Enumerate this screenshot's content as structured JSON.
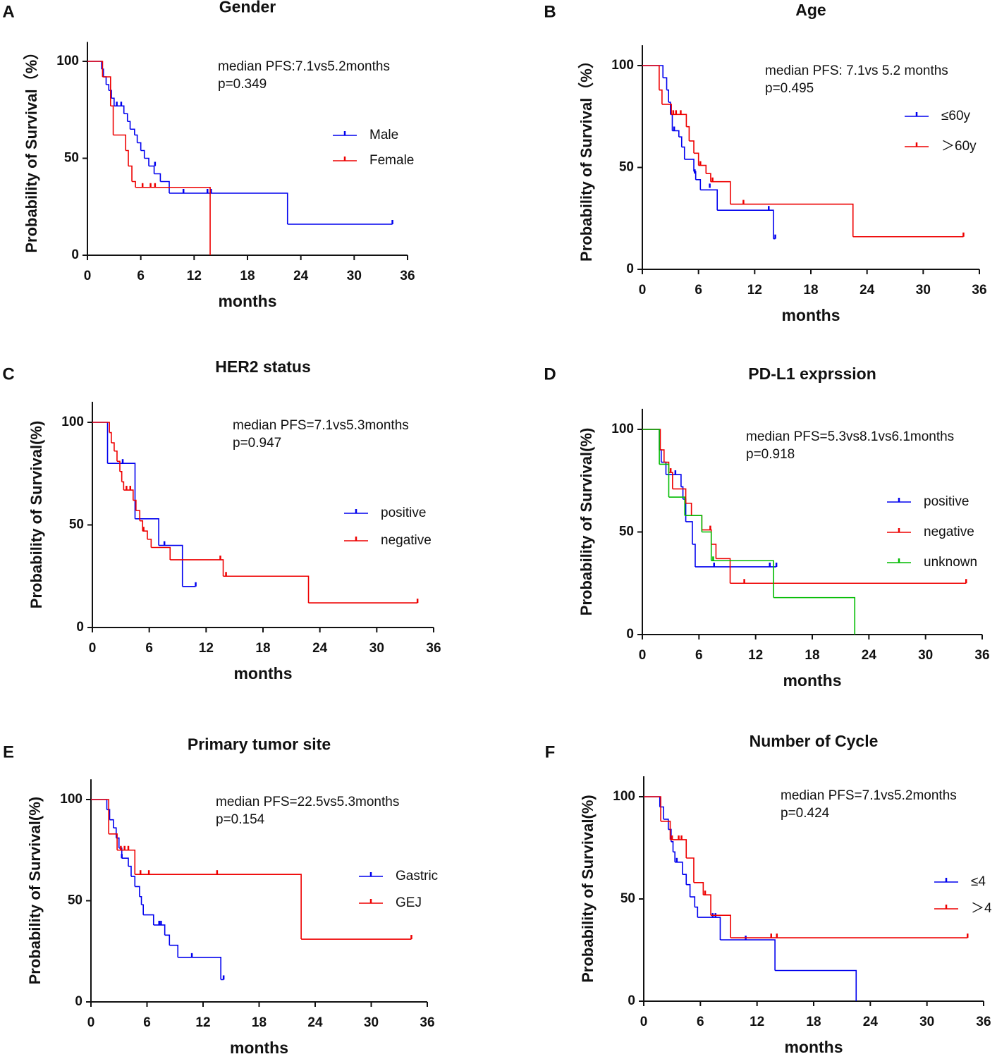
{
  "chart_data": [
    {
      "type": "step",
      "panel": "A",
      "title": "Gender",
      "annotations": [
        "median PFS:7.1vs5.2months",
        "p=0.349"
      ],
      "x_label": "months",
      "y_label": "Probability of Survival（%）",
      "xlim": [
        0,
        36
      ],
      "ylim": [
        0,
        110
      ],
      "xticks": [
        0,
        6,
        12,
        18,
        24,
        30,
        36
      ],
      "yticks": [
        0,
        50,
        100
      ],
      "series": [
        {
          "name": "Male",
          "color": "#0000ee",
          "x": [
            0,
            1.6,
            1.8,
            2.1,
            2.4,
            2.7,
            3.0,
            4.1,
            4.5,
            4.8,
            5.3,
            5.6,
            6.0,
            6.4,
            6.9,
            7.5,
            8.2,
            9.2,
            22.5,
            34.3
          ],
          "values": [
            100,
            96,
            92,
            88,
            85,
            81,
            77,
            73,
            69,
            65,
            62,
            58,
            54,
            50,
            46,
            42,
            38,
            32,
            16,
            16
          ],
          "censor_x": [
            3.3,
            3.8,
            7.6,
            10.8,
            13.5,
            13.9,
            34.3
          ],
          "censor_values": [
            77,
            77,
            46,
            32,
            32,
            32,
            16
          ]
        },
        {
          "name": "Female",
          "color": "#ee0000",
          "x": [
            0,
            1.7,
            2.6,
            2.9,
            4.3,
            4.6,
            5.0,
            5.4,
            13.8
          ],
          "values": [
            100,
            92,
            77,
            62,
            54,
            46,
            38,
            35,
            0
          ],
          "censor_x": [
            6.2,
            7.1,
            7.6
          ],
          "censor_values": [
            35,
            35,
            35
          ]
        }
      ]
    },
    {
      "type": "step",
      "panel": "B",
      "title": "Age",
      "annotations": [
        "median PFS: 7.1vs 5.2 months",
        "p=0.495"
      ],
      "x_label": "months",
      "y_label": "Probability of Survival（%）",
      "xlim": [
        0,
        36
      ],
      "ylim": [
        0,
        110
      ],
      "xticks": [
        0,
        6,
        12,
        18,
        24,
        30,
        36
      ],
      "yticks": [
        0,
        50,
        100
      ],
      "series": [
        {
          "name": "≤60y",
          "color": "#0000ee",
          "x": [
            0,
            2.2,
            2.6,
            2.8,
            3.0,
            3.2,
            3.9,
            4.2,
            4.5,
            5.5,
            5.7,
            6.2,
            8.0,
            14.0,
            14.2
          ],
          "values": [
            100,
            94,
            88,
            82,
            76,
            68,
            65,
            60,
            54,
            48,
            44,
            39,
            29,
            15,
            15
          ],
          "censor_x": [
            3.4,
            5.6,
            7.2,
            13.5,
            14.2
          ],
          "censor_values": [
            68,
            47,
            40,
            29,
            15
          ]
        },
        {
          "name": "＞60y",
          "color": "#ee0000",
          "x": [
            0,
            1.8,
            2.1,
            3.1,
            4.7,
            5.0,
            5.5,
            6.0,
            6.8,
            7.3,
            9.4,
            22.5,
            34.3
          ],
          "values": [
            100,
            88,
            81,
            76,
            70,
            63,
            57,
            51,
            47,
            43,
            32,
            16,
            16
          ],
          "censor_x": [
            3.3,
            3.6,
            4.1,
            6.2,
            7.5,
            10.8,
            34.3
          ],
          "censor_values": [
            76,
            76,
            76,
            51,
            43,
            32,
            16
          ]
        }
      ]
    },
    {
      "type": "step",
      "panel": "C",
      "title": "HER2 status",
      "annotations": [
        "median PFS=7.1vs5.3months",
        "p=0.947"
      ],
      "x_label": "months",
      "y_label": "Probability of Survival(%)",
      "xlim": [
        0,
        36
      ],
      "ylim": [
        0,
        110
      ],
      "xticks": [
        0,
        6,
        12,
        18,
        24,
        30,
        36
      ],
      "yticks": [
        0,
        50,
        100
      ],
      "series": [
        {
          "name": "positive",
          "color": "#0000ee",
          "x": [
            0,
            1.6,
            4.5,
            7.0,
            9.5,
            10.9
          ],
          "values": [
            100,
            80,
            53,
            40,
            20,
            20
          ],
          "censor_x": [
            3.2,
            7.6,
            10.9
          ],
          "censor_values": [
            80,
            40,
            20
          ]
        },
        {
          "name": "negative",
          "color": "#ee0000",
          "x": [
            0,
            1.8,
            2.0,
            2.3,
            2.6,
            2.9,
            3.1,
            3.3,
            4.3,
            4.6,
            5.0,
            5.3,
            5.8,
            6.2,
            8.2,
            13.8,
            22.8,
            34.3
          ],
          "values": [
            100,
            95,
            90,
            86,
            81,
            76,
            71,
            67,
            62,
            57,
            52,
            47,
            43,
            39,
            33,
            25,
            12,
            12
          ],
          "censor_x": [
            3.6,
            4.0,
            5.4,
            13.5,
            14.1,
            34.3
          ],
          "censor_values": [
            67,
            67,
            47,
            33,
            25,
            12
          ]
        }
      ]
    },
    {
      "type": "step",
      "panel": "D",
      "title": "PD-L1 exprssion",
      "annotations": [
        "median PFS=5.3vs8.1vs6.1months",
        "p=0.918"
      ],
      "x_label": "months",
      "y_label": "Probability of Survival(%)",
      "xlim": [
        0,
        36
      ],
      "ylim": [
        0,
        110
      ],
      "xticks": [
        0,
        6,
        12,
        18,
        24,
        30,
        36
      ],
      "yticks": [
        0,
        50,
        100
      ],
      "series": [
        {
          "name": "positive",
          "color": "#0000ee",
          "x": [
            0,
            1.8,
            2.0,
            2.5,
            4.1,
            4.3,
            4.6,
            5.3,
            5.6,
            14.2
          ],
          "values": [
            100,
            90,
            84,
            78,
            72,
            66,
            55,
            44,
            33,
            33
          ],
          "censor_x": [
            3.5,
            7.6,
            13.5,
            14.2
          ],
          "censor_values": [
            78,
            33,
            33,
            33
          ]
        },
        {
          "name": "negative",
          "color": "#ee0000",
          "x": [
            0,
            1.9,
            2.3,
            2.8,
            3.2,
            4.6,
            5.2,
            6.3,
            7.3,
            7.8,
            9.3,
            34.3
          ],
          "values": [
            100,
            90,
            84,
            79,
            71,
            64,
            58,
            51,
            44,
            37,
            25,
            25
          ],
          "censor_x": [
            3.0,
            7.2,
            10.8,
            34.3
          ],
          "censor_values": [
            79,
            51,
            25,
            25
          ]
        },
        {
          "name": "unknown",
          "color": "#00bb00",
          "x": [
            0,
            1.8,
            2.8,
            4.5,
            6.3,
            7.3,
            13.9,
            22.5
          ],
          "values": [
            100,
            83,
            67,
            58,
            50,
            36,
            18,
            0
          ],
          "censor_x": [
            7.5
          ],
          "censor_values": [
            36
          ]
        }
      ]
    },
    {
      "type": "step",
      "panel": "E",
      "title": "Primary tumor site",
      "annotations": [
        "median PFS=22.5vs5.3months",
        "p=0.154"
      ],
      "x_label": "months",
      "y_label": "Probability of Survival(%)",
      "xlim": [
        0,
        36
      ],
      "ylim": [
        0,
        110
      ],
      "xticks": [
        0,
        6,
        12,
        18,
        24,
        30,
        36
      ],
      "yticks": [
        0,
        50,
        100
      ],
      "series": [
        {
          "name": "Gastric",
          "color": "#0000ee",
          "x": [
            0,
            1.7,
            2.0,
            2.4,
            2.7,
            3.0,
            3.3,
            4.0,
            4.3,
            4.7,
            5.2,
            5.4,
            5.6,
            6.7,
            7.9,
            8.4,
            9.3,
            13.9,
            14.2
          ],
          "values": [
            100,
            95,
            90,
            86,
            81,
            76,
            71,
            67,
            62,
            57,
            52,
            48,
            43,
            38,
            33,
            28,
            22,
            11,
            11
          ],
          "censor_x": [
            3.3,
            7.3,
            7.5,
            10.8,
            14.2
          ],
          "censor_values": [
            71,
            38,
            38,
            22,
            11
          ]
        },
        {
          "name": "GEJ",
          "color": "#ee0000",
          "x": [
            0,
            1.9,
            2.8,
            4.7,
            22.5,
            34.3
          ],
          "values": [
            100,
            83,
            75,
            63,
            31,
            31
          ],
          "censor_x": [
            3.2,
            3.6,
            4.0,
            5.3,
            6.2,
            13.5,
            34.3
          ],
          "censor_values": [
            75,
            75,
            75,
            63,
            63,
            63,
            31
          ]
        }
      ]
    },
    {
      "type": "step",
      "panel": "F",
      "title": "Number of Cycle",
      "annotations": [
        "median PFS=7.1vs5.2months",
        "p=0.424"
      ],
      "x_label": "months",
      "y_label": "Probability of Survival(%)",
      "xlim": [
        0,
        36
      ],
      "ylim": [
        0,
        110
      ],
      "xticks": [
        0,
        6,
        12,
        18,
        24,
        30,
        36
      ],
      "yticks": [
        0,
        50,
        100
      ],
      "series": [
        {
          "name": "≤4",
          "color": "#0000ee",
          "x": [
            0,
            1.7,
            2.1,
            2.6,
            2.9,
            3.1,
            3.3,
            4.1,
            4.5,
            4.9,
            5.4,
            5.7,
            8.1,
            13.9,
            22.5
          ],
          "values": [
            100,
            95,
            89,
            84,
            78,
            73,
            68,
            62,
            57,
            51,
            46,
            41,
            30,
            15,
            0
          ],
          "censor_x": [
            3.5,
            7.3,
            7.6,
            10.8
          ],
          "censor_values": [
            68,
            41,
            41,
            30
          ]
        },
        {
          "name": "＞4",
          "color": "#ee0000",
          "x": [
            0,
            1.8,
            2.8,
            4.5,
            5.3,
            6.3,
            7.1,
            9.2,
            34.3
          ],
          "values": [
            100,
            88,
            79,
            70,
            58,
            52,
            42,
            31,
            31
          ],
          "censor_x": [
            3.0,
            3.7,
            4.0,
            6.5,
            13.5,
            14.1,
            34.3
          ],
          "censor_values": [
            79,
            79,
            79,
            52,
            31,
            31,
            31
          ]
        }
      ]
    }
  ]
}
